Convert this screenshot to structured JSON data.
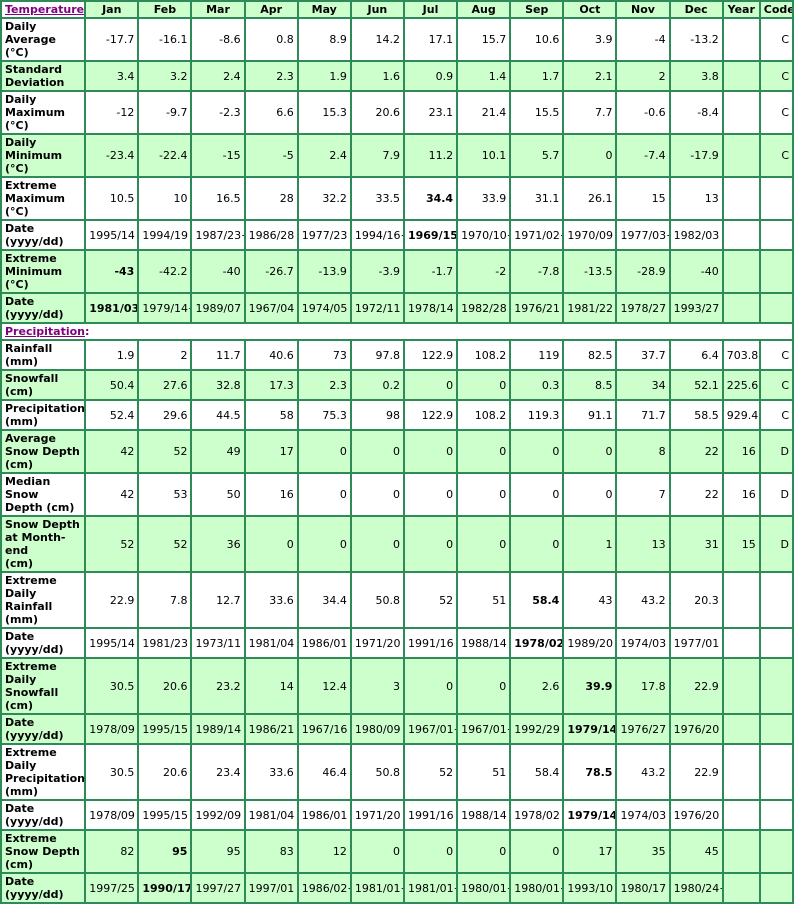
{
  "palette": {
    "cell_green": "#ccffcc",
    "cell_white": "#ffffff",
    "grid_green": "#2e8b57",
    "header_blue": "#0000cc",
    "section_link_purple": "#800080",
    "data_text": "#000000"
  },
  "header": {
    "section": {
      "text": "Temperature",
      "colon": ":"
    },
    "months": [
      "Jan",
      "Feb",
      "Mar",
      "Apr",
      "May",
      "Jun",
      "Jul",
      "Aug",
      "Sep",
      "Oct",
      "Nov",
      "Dec"
    ],
    "year_label": "Year",
    "code_label": "Code"
  },
  "rows": [
    {
      "label": "Daily Average\n(°C)",
      "bg": "white",
      "values": [
        "-17.7",
        "-16.1",
        "-8.6",
        "0.8",
        "8.9",
        "14.2",
        "17.1",
        "15.7",
        "10.6",
        "3.9",
        "-4",
        "-13.2"
      ],
      "year": "",
      "code": "C",
      "bold": []
    },
    {
      "label": "Standard\nDeviation",
      "bg": "green",
      "values": [
        "3.4",
        "3.2",
        "2.4",
        "2.3",
        "1.9",
        "1.6",
        "0.9",
        "1.4",
        "1.7",
        "2.1",
        "2",
        "3.8"
      ],
      "year": "",
      "code": "C",
      "bold": []
    },
    {
      "label": "Daily\nMaximum\n(°C)",
      "bg": "white",
      "values": [
        "-12",
        "-9.7",
        "-2.3",
        "6.6",
        "15.3",
        "20.6",
        "23.1",
        "21.4",
        "15.5",
        "7.7",
        "-0.6",
        "-8.4"
      ],
      "year": "",
      "code": "C",
      "bold": []
    },
    {
      "label": "Daily\nMinimum\n(°C)",
      "bg": "green",
      "values": [
        "-23.4",
        "-22.4",
        "-15",
        "-5",
        "2.4",
        "7.9",
        "11.2",
        "10.1",
        "5.7",
        "0",
        "-7.4",
        "-17.9"
      ],
      "year": "",
      "code": "C",
      "bold": []
    },
    {
      "label": "Extreme\nMaximum\n(°C)",
      "bg": "white",
      "values": [
        "10.5",
        "10",
        "16.5",
        "28",
        "32.2",
        "33.5",
        "34.4",
        "33.9",
        "31.1",
        "26.1",
        "15",
        "13"
      ],
      "year": "",
      "code": "",
      "bold": [
        6
      ]
    },
    {
      "label": "Date\n(yyyy/dd)",
      "bg": "white",
      "values": [
        "1995/14",
        "1994/19",
        "1987/23+",
        "1986/28",
        "1977/23",
        "1994/16+",
        "1969/15",
        "1970/10+",
        "1971/02+",
        "1970/09",
        "1977/03+",
        "1982/03"
      ],
      "year": "",
      "code": "",
      "bold": [
        6
      ]
    },
    {
      "label": "Extreme\nMinimum\n(°C)",
      "bg": "green",
      "values": [
        "-43",
        "-42.2",
        "-40",
        "-26.7",
        "-13.9",
        "-3.9",
        "-1.7",
        "-2",
        "-7.8",
        "-13.5",
        "-28.9",
        "-40"
      ],
      "year": "",
      "code": "",
      "bold": [
        0
      ]
    },
    {
      "label": "Date\n(yyyy/dd)",
      "bg": "green",
      "values": [
        "1981/03+",
        "1979/14+",
        "1989/07",
        "1967/04",
        "1974/05",
        "1972/11",
        "1978/14",
        "1982/28",
        "1976/21",
        "1981/22",
        "1978/27",
        "1993/27"
      ],
      "year": "",
      "code": "",
      "bold": [
        0
      ]
    },
    {
      "type": "section",
      "label": "Precipitation",
      "suffix": ":"
    },
    {
      "label": "Rainfall (mm)",
      "bg": "white",
      "values": [
        "1.9",
        "2",
        "11.7",
        "40.6",
        "73",
        "97.8",
        "122.9",
        "108.2",
        "119",
        "82.5",
        "37.7",
        "6.4"
      ],
      "year": "703.8",
      "code": "C",
      "bold": []
    },
    {
      "label": "Snowfall\n(cm)",
      "bg": "green",
      "values": [
        "50.4",
        "27.6",
        "32.8",
        "17.3",
        "2.3",
        "0.2",
        "0",
        "0",
        "0.3",
        "8.5",
        "34",
        "52.1"
      ],
      "year": "225.6",
      "code": "C",
      "bold": []
    },
    {
      "label": "Precipitation\n(mm)",
      "bg": "white",
      "values": [
        "52.4",
        "29.6",
        "44.5",
        "58",
        "75.3",
        "98",
        "122.9",
        "108.2",
        "119.3",
        "91.1",
        "71.7",
        "58.5"
      ],
      "year": "929.4",
      "code": "C",
      "bold": []
    },
    {
      "label": "Average\nSnow Depth\n(cm)",
      "bg": "green",
      "values": [
        "42",
        "52",
        "49",
        "17",
        "0",
        "0",
        "0",
        "0",
        "0",
        "0",
        "8",
        "22"
      ],
      "year": "16",
      "code": "D",
      "bold": []
    },
    {
      "label": "Median Snow\nDepth (cm)",
      "bg": "white",
      "values": [
        "42",
        "53",
        "50",
        "16",
        "0",
        "0",
        "0",
        "0",
        "0",
        "0",
        "7",
        "22"
      ],
      "year": "16",
      "code": "D",
      "bold": []
    },
    {
      "label": "Snow Depth\nat Month-end\n(cm)",
      "bg": "green",
      "values": [
        "52",
        "52",
        "36",
        "0",
        "0",
        "0",
        "0",
        "0",
        "0",
        "1",
        "13",
        "31"
      ],
      "year": "15",
      "code": "D",
      "bold": []
    },
    {
      "label": "Extreme Daily\nRainfall (mm)",
      "bg": "white",
      "values": [
        "22.9",
        "7.8",
        "12.7",
        "33.6",
        "34.4",
        "50.8",
        "52",
        "51",
        "58.4",
        "43",
        "43.2",
        "20.3"
      ],
      "year": "",
      "code": "",
      "bold": [
        8
      ]
    },
    {
      "label": "Date\n(yyyy/dd)",
      "bg": "white",
      "values": [
        "1995/14",
        "1981/23",
        "1973/11",
        "1981/04",
        "1986/01",
        "1971/20",
        "1991/16",
        "1988/14",
        "1978/02",
        "1989/20",
        "1974/03",
        "1977/01"
      ],
      "year": "",
      "code": "",
      "bold": [
        8
      ]
    },
    {
      "label": "Extreme Daily\nSnowfall\n(cm)",
      "bg": "green",
      "values": [
        "30.5",
        "20.6",
        "23.2",
        "14",
        "12.4",
        "3",
        "0",
        "0",
        "2.6",
        "39.9",
        "17.8",
        "22.9"
      ],
      "year": "",
      "code": "",
      "bold": [
        9
      ]
    },
    {
      "label": "Date\n(yyyy/dd)",
      "bg": "green",
      "values": [
        "1978/09",
        "1995/15",
        "1989/14",
        "1986/21",
        "1967/16",
        "1980/09",
        "1967/01+",
        "1967/01+",
        "1992/29",
        "1979/14",
        "1976/27",
        "1976/20"
      ],
      "year": "",
      "code": "",
      "bold": [
        9
      ]
    },
    {
      "label": "Extreme Daily\nPrecipitation\n(mm)",
      "bg": "white",
      "values": [
        "30.5",
        "20.6",
        "23.4",
        "33.6",
        "46.4",
        "50.8",
        "52",
        "51",
        "58.4",
        "78.5",
        "43.2",
        "22.9"
      ],
      "year": "",
      "code": "",
      "bold": [
        9
      ]
    },
    {
      "label": "Date\n(yyyy/dd)",
      "bg": "white",
      "values": [
        "1978/09",
        "1995/15",
        "1992/09",
        "1981/04",
        "1986/01",
        "1971/20",
        "1991/16",
        "1988/14",
        "1978/02",
        "1979/14",
        "1974/03",
        "1976/20"
      ],
      "year": "",
      "code": "",
      "bold": [
        9
      ]
    },
    {
      "label": "Extreme\nSnow Depth\n(cm)",
      "bg": "green",
      "values": [
        "82",
        "95",
        "95",
        "83",
        "12",
        "0",
        "0",
        "0",
        "0",
        "17",
        "35",
        "45"
      ],
      "year": "",
      "code": "",
      "bold": [
        1
      ]
    },
    {
      "label": "Date\n(yyyy/dd)",
      "bg": "green",
      "values": [
        "1997/25",
        "1990/17+",
        "1997/27",
        "1997/01",
        "1986/02+",
        "1981/01+",
        "1981/01+",
        "1980/01+",
        "1980/01+",
        "1993/10",
        "1980/17",
        "1980/24+"
      ],
      "year": "",
      "code": "",
      "bold": [
        1
      ]
    }
  ]
}
